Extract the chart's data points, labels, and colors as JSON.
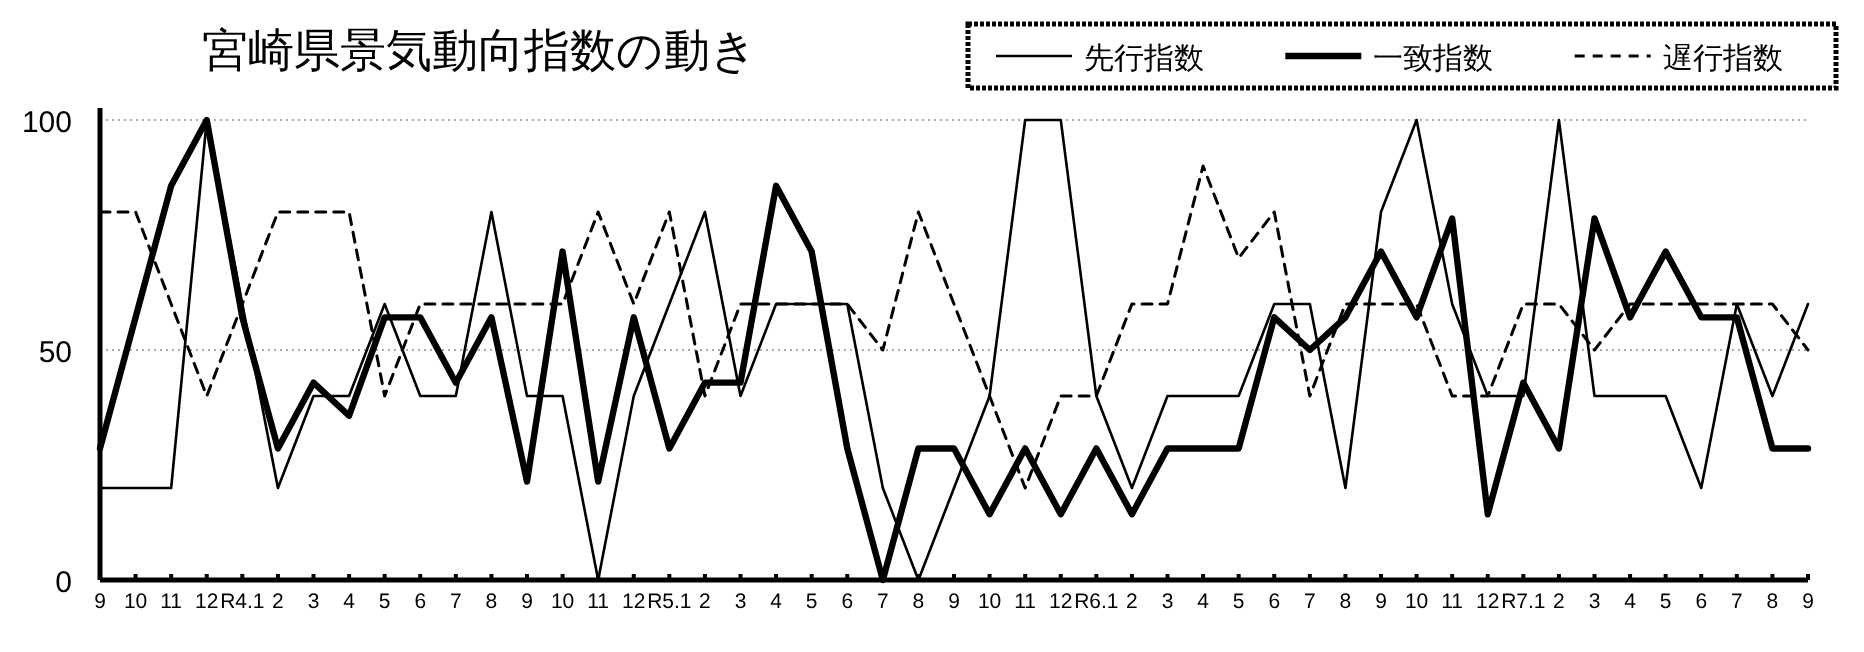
{
  "chart_data": {
    "type": "line",
    "title": "宮崎県景気動向指数の動き",
    "categories": [
      "9",
      "10",
      "11",
      "12",
      "R4.1",
      "2",
      "3",
      "4",
      "5",
      "6",
      "7",
      "8",
      "9",
      "10",
      "11",
      "12",
      "R5.1",
      "2",
      "3",
      "4",
      "5",
      "6",
      "7",
      "8",
      "9",
      "10",
      "11",
      "12",
      "R6.1",
      "2",
      "3",
      "4",
      "5",
      "6",
      "7",
      "8",
      "9",
      "10",
      "11",
      "12",
      "R7.1",
      "2",
      "3",
      "4",
      "5",
      "6",
      "7",
      "8",
      "9"
    ],
    "series": [
      {
        "name": "先行指数",
        "color": "#000000",
        "line_style": "solid",
        "values": [
          20,
          20,
          20,
          100,
          60,
          20,
          40,
          40,
          60,
          40,
          40,
          80,
          40,
          40,
          0,
          40,
          60,
          80,
          40,
          60,
          60,
          60,
          20,
          0,
          20,
          40,
          100,
          100,
          40,
          20,
          40,
          40,
          40,
          60,
          60,
          20,
          80,
          100,
          60,
          40,
          40,
          100,
          40,
          40,
          40,
          20,
          60,
          40,
          60
        ]
      },
      {
        "name": "一致指数",
        "color": "#000000",
        "line_style": "solid",
        "values": [
          28.6,
          57.1,
          85.7,
          100,
          57.1,
          28.6,
          42.9,
          35.7,
          57.1,
          57.1,
          42.9,
          57.1,
          21.4,
          71.4,
          21.4,
          57.1,
          28.6,
          42.9,
          42.9,
          85.7,
          71.4,
          28.6,
          0,
          28.6,
          28.6,
          14.3,
          28.6,
          14.3,
          28.6,
          14.3,
          28.6,
          28.6,
          28.6,
          57.1,
          50,
          57.1,
          71.4,
          57.1,
          78.6,
          14.3,
          42.9,
          28.6,
          78.6,
          57.1,
          71.4,
          57.1,
          57.1,
          28.6,
          28.6
        ]
      },
      {
        "name": "遅行指数",
        "color": "#000000",
        "line_style": "dashed",
        "values": [
          80,
          80,
          60,
          40,
          60,
          80,
          80,
          80,
          40,
          60,
          60,
          60,
          60,
          60,
          80,
          60,
          80,
          40,
          60,
          60,
          60,
          60,
          50,
          80,
          60,
          40,
          20,
          40,
          40,
          60,
          60,
          90,
          70,
          80,
          40,
          60,
          60,
          60,
          40,
          40,
          60,
          60,
          50,
          60,
          60,
          60,
          60,
          60,
          50
        ]
      }
    ],
    "ylim": [
      0,
      100
    ],
    "yticks": [
      0,
      50,
      100
    ],
    "grid": "y",
    "legend": "top right"
  }
}
